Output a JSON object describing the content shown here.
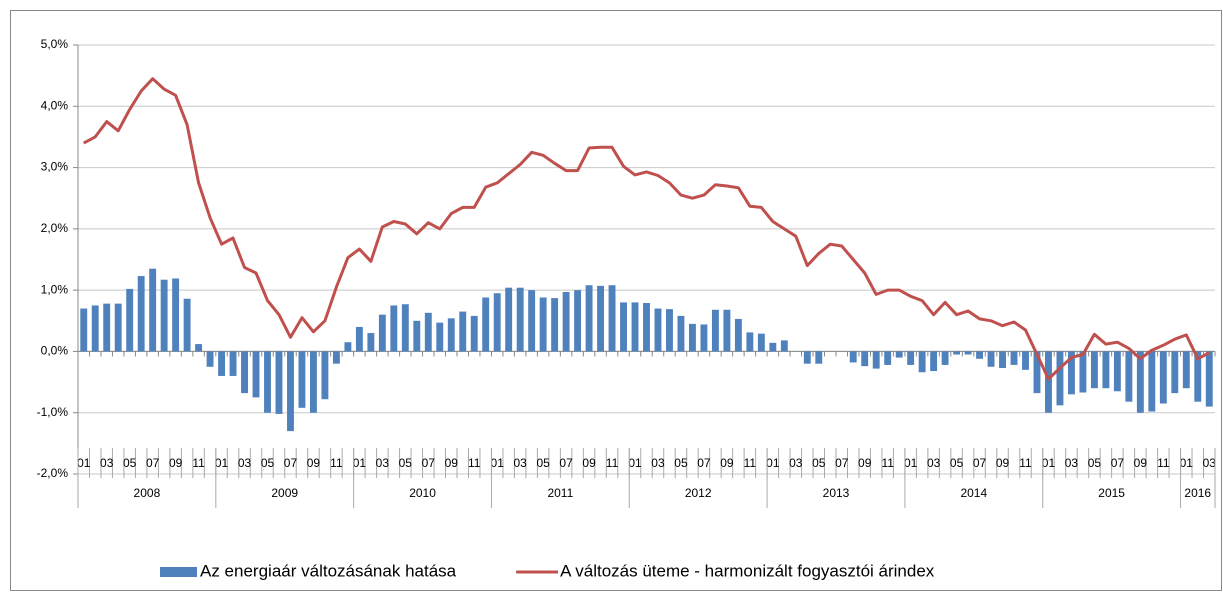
{
  "chart_data": {
    "type": "combo",
    "categories": [
      "01",
      null,
      "03",
      null,
      "05",
      null,
      "07",
      null,
      "09",
      null,
      "11",
      null,
      "01",
      null,
      "03",
      null,
      "05",
      null,
      "07",
      null,
      "09",
      null,
      "11",
      null,
      "01",
      null,
      "03",
      null,
      "05",
      null,
      "07",
      null,
      "09",
      null,
      "11",
      null,
      "01",
      null,
      "03",
      null,
      "05",
      null,
      "07",
      null,
      "09",
      null,
      "11",
      null,
      "01",
      null,
      "03",
      null,
      "05",
      null,
      "07",
      null,
      "09",
      null,
      "11",
      null,
      "01",
      null,
      "03",
      null,
      "05",
      null,
      "07",
      null,
      "09",
      null,
      "11",
      null,
      "01",
      null,
      "03",
      null,
      "05",
      null,
      "07",
      null,
      "09",
      null,
      "11",
      null,
      "01",
      null,
      "03",
      null,
      "05",
      null,
      "07",
      null,
      "09",
      null,
      "11",
      null,
      "01",
      null,
      "03"
    ],
    "years": [
      "2008",
      "2009",
      "2010",
      "2011",
      "2012",
      "2013",
      "2014",
      "2015",
      "2016"
    ],
    "series": [
      {
        "name": "Az energiaár változásának hatása",
        "type": "bar",
        "color": "#4f81bd",
        "values": [
          0.7,
          0.75,
          0.78,
          0.78,
          1.02,
          1.23,
          1.35,
          1.17,
          1.19,
          0.86,
          0.12,
          -0.25,
          -0.4,
          -0.4,
          -0.68,
          -0.75,
          -1.0,
          -1.02,
          -1.3,
          -0.92,
          -1.0,
          -0.78,
          -0.2,
          0.15,
          0.4,
          0.3,
          0.6,
          0.75,
          0.77,
          0.5,
          0.63,
          0.47,
          0.54,
          0.65,
          0.58,
          0.88,
          0.95,
          1.04,
          1.04,
          1.0,
          0.88,
          0.87,
          0.97,
          1.0,
          1.08,
          1.07,
          1.08,
          0.8,
          0.8,
          0.79,
          0.7,
          0.69,
          0.58,
          0.45,
          0.44,
          0.68,
          0.68,
          0.53,
          0.31,
          0.29,
          0.14,
          0.18,
          0.0,
          -0.2,
          -0.2,
          0.0,
          0.0,
          -0.18,
          -0.24,
          -0.28,
          -0.22,
          -0.1,
          -0.22,
          -0.34,
          -0.32,
          -0.22,
          -0.05,
          -0.05,
          -0.12,
          -0.25,
          -0.27,
          -0.22,
          -0.3,
          -0.68,
          -1.0,
          -0.88,
          -0.7,
          -0.67,
          -0.6,
          -0.6,
          -0.65,
          -0.82,
          -1.0,
          -0.98,
          -0.85,
          -0.68,
          -0.6,
          -0.82,
          -0.9
        ]
      },
      {
        "name": "A változás üteme - harmonizált fogyasztói árindex",
        "type": "line",
        "color": "#c0504d",
        "values": [
          3.4,
          3.5,
          3.75,
          3.6,
          3.95,
          4.25,
          4.45,
          4.28,
          4.18,
          3.7,
          2.75,
          2.18,
          1.75,
          1.85,
          1.37,
          1.28,
          0.83,
          0.6,
          0.23,
          0.55,
          0.32,
          0.5,
          1.05,
          1.53,
          1.67,
          1.47,
          2.03,
          2.12,
          2.08,
          1.92,
          2.1,
          2.0,
          2.25,
          2.35,
          2.35,
          2.68,
          2.75,
          2.9,
          3.05,
          3.25,
          3.2,
          3.07,
          2.95,
          2.95,
          3.32,
          3.33,
          3.33,
          3.02,
          2.88,
          2.93,
          2.87,
          2.75,
          2.55,
          2.5,
          2.55,
          2.72,
          2.7,
          2.67,
          2.37,
          2.35,
          2.12,
          2.0,
          1.88,
          1.4,
          1.6,
          1.75,
          1.72,
          1.5,
          1.28,
          0.93,
          1.0,
          1.0,
          0.9,
          0.83,
          0.6,
          0.8,
          0.6,
          0.66,
          0.53,
          0.5,
          0.42,
          0.48,
          0.35,
          -0.05,
          -0.45,
          -0.27,
          -0.1,
          -0.05,
          0.28,
          0.12,
          0.15,
          0.05,
          -0.12,
          0.02,
          0.1,
          0.2,
          0.27,
          -0.12,
          -0.02
        ]
      }
    ],
    "ylim": [
      -2,
      5
    ],
    "yticks": [
      {
        "value": -2,
        "label": "-2,0%"
      },
      {
        "value": -1,
        "label": "-1,0%"
      },
      {
        "value": 0,
        "label": "0,0%"
      },
      {
        "value": 1,
        "label": "1,0%"
      },
      {
        "value": 2,
        "label": "2,0%"
      },
      {
        "value": 3,
        "label": "3,0%"
      },
      {
        "value": 4,
        "label": "4,0%"
      },
      {
        "value": 5,
        "label": "5,0%"
      }
    ],
    "grid": true,
    "legend": "bottom"
  }
}
